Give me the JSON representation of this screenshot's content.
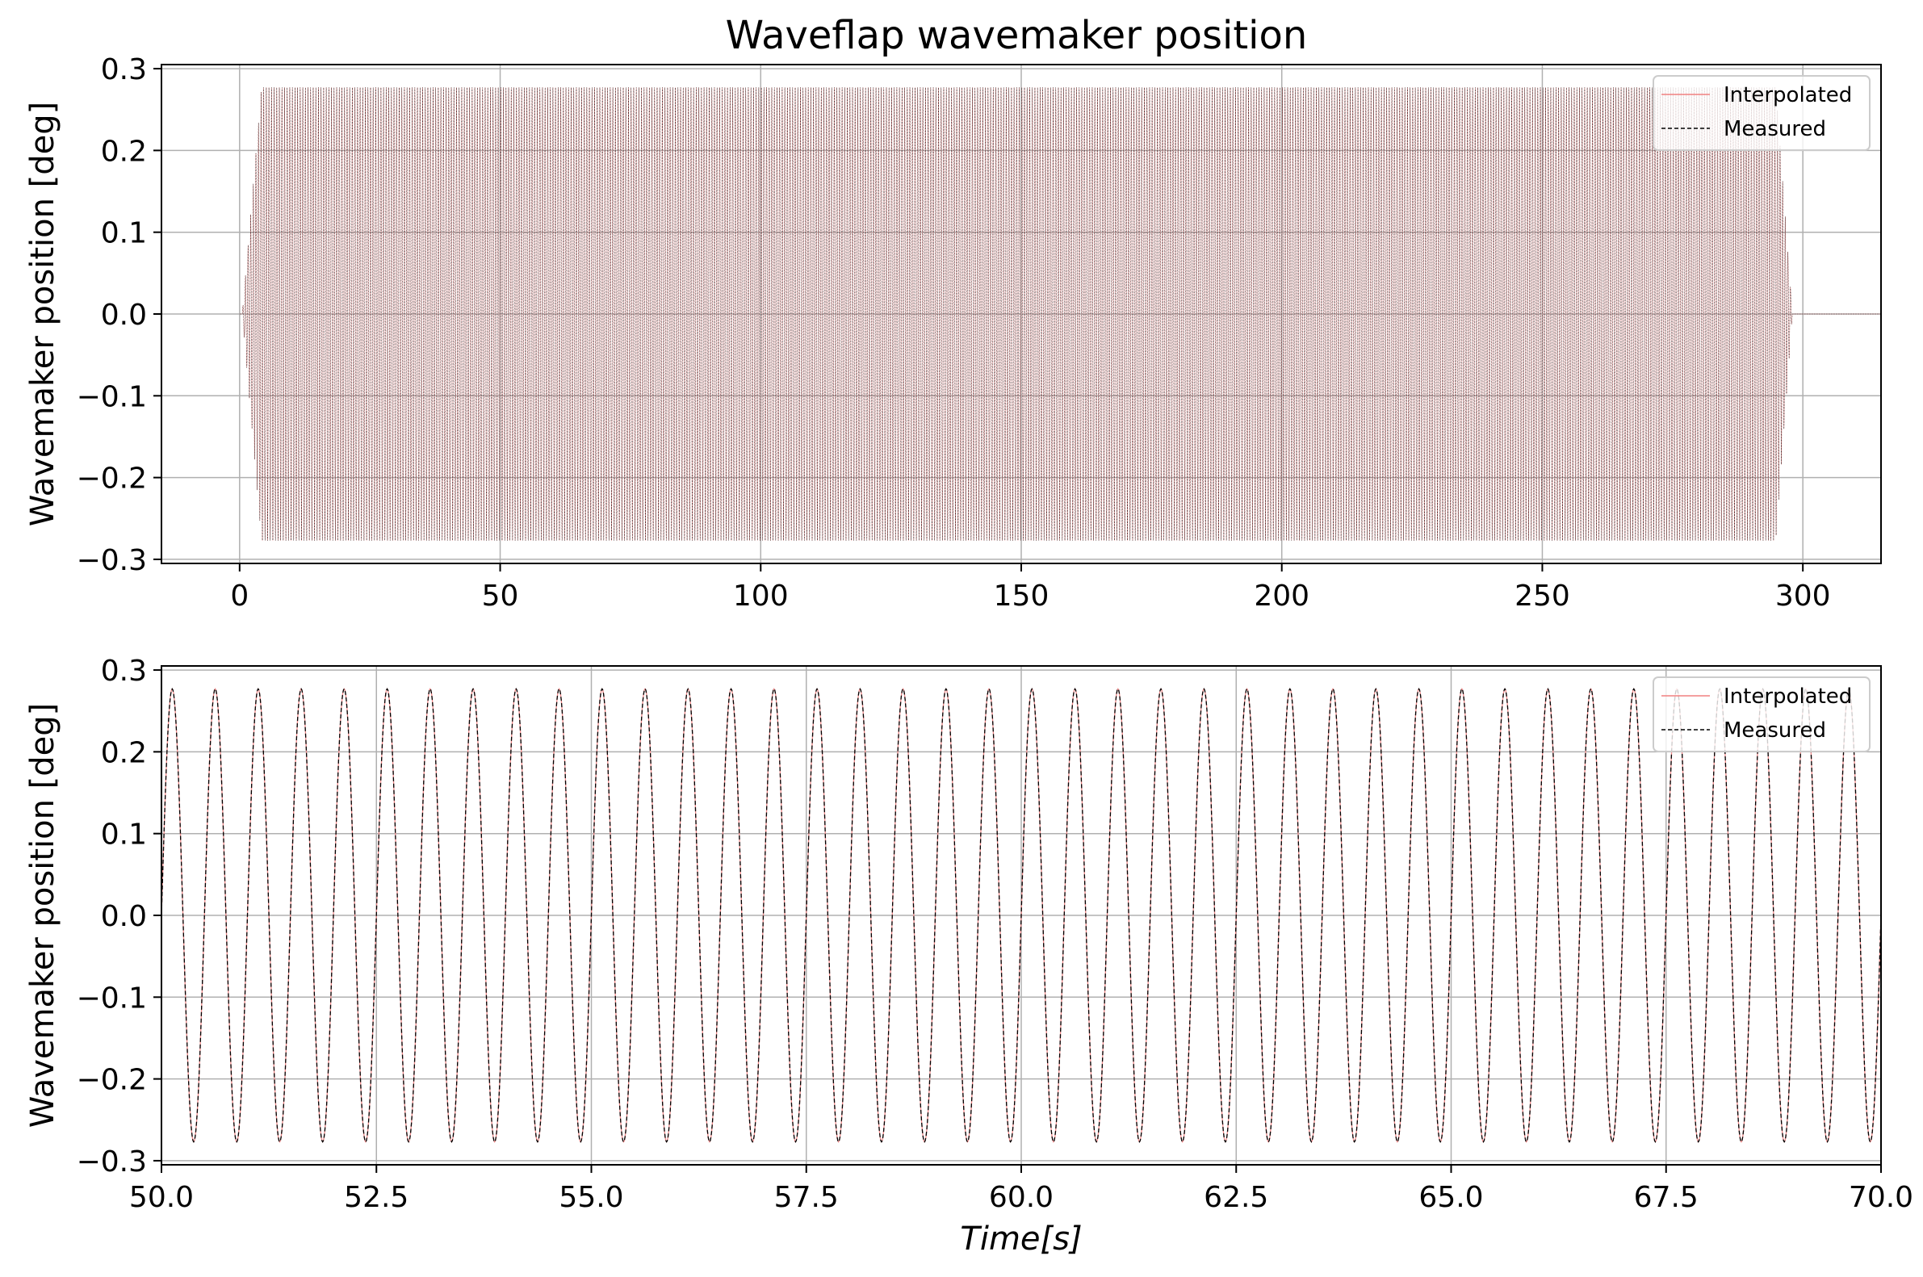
{
  "chart_data": [
    {
      "type": "line",
      "title": "Waveflap wavemaker position",
      "xlabel": "",
      "ylabel": "Wavemaker position [deg]",
      "xlim": [
        -15,
        315
      ],
      "ylim": [
        -0.305,
        0.305
      ],
      "xticks": [
        0,
        50,
        100,
        150,
        200,
        250,
        300
      ],
      "xtick_labels": [
        "0",
        "50",
        "100",
        "150",
        "200",
        "250",
        "300"
      ],
      "yticks": [
        -0.3,
        -0.2,
        -0.1,
        0.0,
        0.1,
        0.2,
        0.3
      ],
      "ytick_labels": [
        "−0.3",
        "−0.2",
        "−0.1",
        "0.0",
        "0.1",
        "0.2",
        "0.3"
      ],
      "grid": true,
      "legend_position": "top-right",
      "signal": {
        "amplitude": 0.277,
        "period": 0.5,
        "t_start": 0.5,
        "ramp_up_end": 4.2,
        "ramp_down_start": 294.8,
        "t_end": 298.0
      },
      "series": [
        {
          "name": "Interpolated",
          "color": "#f08080",
          "style": "solid"
        },
        {
          "name": "Measured",
          "color": "#000000",
          "style": "dashed"
        }
      ]
    },
    {
      "type": "line",
      "title": "",
      "xlabel": "Time[s]",
      "ylabel": "Wavemaker position [deg]",
      "xlim": [
        50,
        70
      ],
      "ylim": [
        -0.305,
        0.305
      ],
      "xticks": [
        50,
        52.5,
        55,
        57.5,
        60,
        62.5,
        65,
        67.5,
        70
      ],
      "xtick_labels": [
        "50.0",
        "52.5",
        "55.0",
        "57.5",
        "60.0",
        "62.5",
        "65.0",
        "67.5",
        "70.0"
      ],
      "yticks": [
        -0.3,
        -0.2,
        -0.1,
        0.0,
        0.1,
        0.2,
        0.3
      ],
      "ytick_labels": [
        "−0.3",
        "−0.2",
        "−0.1",
        "0.0",
        "0.1",
        "0.2",
        "0.3"
      ],
      "grid": true,
      "legend_position": "top-right",
      "signal": {
        "amplitude": 0.277,
        "period": 0.5,
        "t_start": 0.5,
        "ramp_up_end": 4.2,
        "ramp_down_start": 294.8,
        "t_end": 298.0
      },
      "series": [
        {
          "name": "Interpolated",
          "color": "#f08080",
          "style": "solid"
        },
        {
          "name": "Measured",
          "color": "#000000",
          "style": "dashed"
        }
      ]
    }
  ]
}
